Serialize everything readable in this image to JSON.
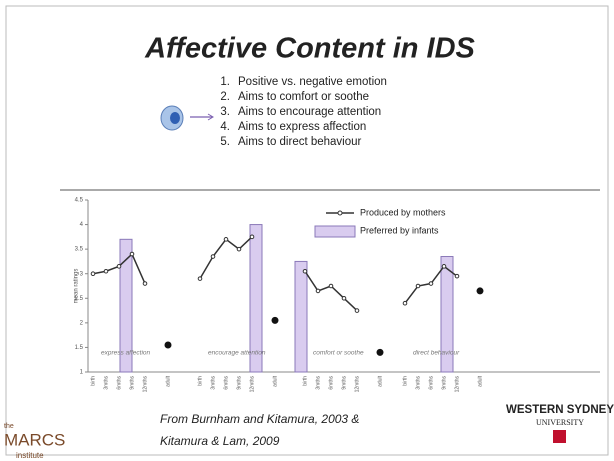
{
  "slide": {
    "title": "Affective Content in IDS",
    "list": [
      "Positive vs. negative emotion",
      "Aims to comfort or soothe",
      "Aims to encourage attention",
      "Aims to express affection",
      "Aims to direct behaviour"
    ],
    "source": [
      "From Burnham and Kitamura, 2003 &",
      "Kitamura & Lam, 2009"
    ],
    "logo_left": [
      "the",
      "MARCS",
      "institute"
    ],
    "logo_right": [
      "WESTERN SYDNEY",
      "UNIVERSITY"
    ]
  },
  "chart_data": {
    "type": "line",
    "ylabel": "mean ratings",
    "ylim": [
      1,
      4.5
    ],
    "yticks": [
      1,
      1.5,
      2,
      2.5,
      3,
      3.5,
      4,
      4.5
    ],
    "categories": [
      "birth",
      "3mths",
      "6mths",
      "9mths",
      "12mths",
      "adult"
    ],
    "legend": [
      "Produced by mothers",
      "Preferred by infants"
    ],
    "line_color": "#333333",
    "bar_color": "#d9ccef",
    "groups": [
      {
        "label": "express affection",
        "mothers": [
          3.0,
          3.05,
          3.15,
          3.4,
          2.8
        ],
        "adult": 1.55,
        "infants": 3.7
      },
      {
        "label": "encourage attention",
        "mothers": [
          2.9,
          3.35,
          3.7,
          3.5,
          3.75
        ],
        "adult": 2.05,
        "infants": 4.0
      },
      {
        "label": "comfort or soothe",
        "mothers": [
          3.05,
          2.65,
          2.75,
          2.5,
          2.25
        ],
        "adult": 1.4,
        "infants": 3.25
      },
      {
        "label": "direct behaviour",
        "mothers": [
          2.4,
          2.75,
          2.8,
          3.15,
          2.95
        ],
        "adult": 2.65,
        "infants": 3.35
      }
    ]
  }
}
